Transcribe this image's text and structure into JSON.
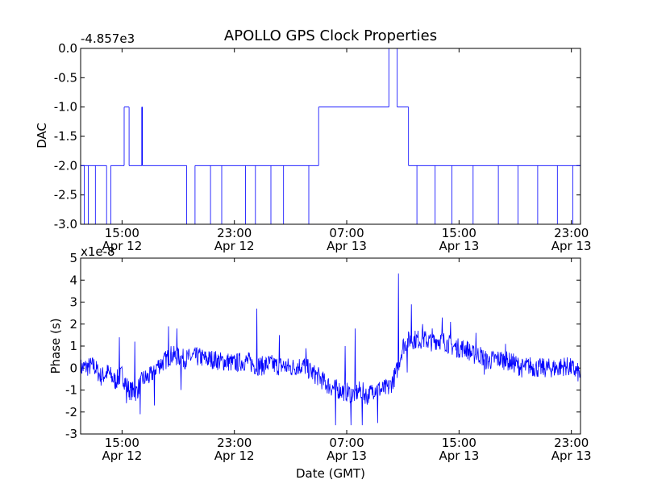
{
  "chart_data": [
    {
      "type": "line",
      "title": "APOLLO GPS Clock Properties",
      "ylabel": "DAC",
      "xlabel": "",
      "offset_label": "-4.857e3",
      "ylim": [
        -3.0,
        0.0
      ],
      "y_ticks": [
        "-3.0",
        "-2.5",
        "-2.0",
        "-1.5",
        "-1.0",
        "-0.5",
        "0.0"
      ],
      "x_ticks": [
        {
          "time": "15:00",
          "date": "Apr 12"
        },
        {
          "time": "23:00",
          "date": "Apr 12"
        },
        {
          "time": "07:00",
          "date": "Apr 13"
        },
        {
          "time": "15:00",
          "date": "Apr 13"
        },
        {
          "time": "23:00",
          "date": "Apr 13"
        }
      ],
      "x_tick_hours": [
        15,
        23,
        31,
        39,
        47
      ],
      "xlim_hours": [
        12.05,
        47.65
      ],
      "series": [
        {
          "color": "#0000ff",
          "segments": [
            {
              "x": [
                12.05,
                13.9
              ],
              "y": -2.0
            },
            {
              "x": [
                14.2,
                15.15
              ],
              "y": -2.0
            },
            {
              "x": [
                15.15,
                15.5
              ],
              "y": -1.0
            },
            {
              "x": [
                15.5,
                16.4
              ],
              "y": -2.0
            },
            {
              "x": [
                16.4,
                16.45
              ],
              "y": -1.0
            },
            {
              "x": [
                16.45,
                19.6
              ],
              "y": -2.0
            },
            {
              "x": [
                20.2,
                26.5
              ],
              "y": -2.0
            },
            {
              "x": [
                26.5,
                29.0
              ],
              "y": -2.0
            },
            {
              "x": [
                29.0,
                30.0
              ],
              "y": -1.0
            },
            {
              "x": [
                30.0,
                31.5
              ],
              "y": -1.0
            },
            {
              "x": [
                31.5,
                32.5
              ],
              "y": -1.0
            },
            {
              "x": [
                32.5,
                34.0
              ],
              "y": -1.0
            },
            {
              "x": [
                34.0,
                34.6
              ],
              "y": 0.0
            },
            {
              "x": [
                34.6,
                35.4
              ],
              "y": -1.0
            },
            {
              "x": [
                35.4,
                47.65
              ],
              "y": -2.0
            }
          ],
          "dropouts_to_min": [
            12.3,
            12.6,
            13.1,
            13.9,
            14.2,
            19.6,
            20.2,
            21.3,
            22.1,
            23.8,
            24.5,
            25.6,
            26.5,
            28.3,
            36.0,
            37.3,
            38.5,
            40.0,
            41.8,
            43.2,
            44.6,
            46.0,
            47.1
          ]
        }
      ]
    },
    {
      "type": "line",
      "title": "",
      "ylabel": "Phase (s)",
      "xlabel": "Date (GMT)",
      "offset_label": "x1e-8",
      "ylim": [
        -3,
        5
      ],
      "y_ticks": [
        "-3",
        "-2",
        "-1",
        "0",
        "1",
        "2",
        "3",
        "4",
        "5"
      ],
      "x_ticks": [
        {
          "time": "15:00",
          "date": "Apr 12"
        },
        {
          "time": "23:00",
          "date": "Apr 12"
        },
        {
          "time": "07:00",
          "date": "Apr 13"
        },
        {
          "time": "15:00",
          "date": "Apr 13"
        },
        {
          "time": "23:00",
          "date": "Apr 13"
        }
      ],
      "x_tick_hours": [
        15,
        23,
        31,
        39,
        47
      ],
      "xlim_hours": [
        12.05,
        47.65
      ],
      "series": [
        {
          "color": "#0000ff",
          "points": [
            [
              12.05,
              0.0
            ],
            [
              13.0,
              0.1
            ],
            [
              13.5,
              -0.4
            ],
            [
              14.0,
              -0.2
            ],
            [
              14.5,
              -0.6
            ],
            [
              15.0,
              -0.3
            ],
            [
              15.5,
              -1.0
            ],
            [
              16.0,
              -1.1
            ],
            [
              16.5,
              -0.5
            ],
            [
              17.0,
              -0.4
            ],
            [
              17.5,
              0.1
            ],
            [
              18.0,
              0.3
            ],
            [
              18.5,
              0.6
            ],
            [
              19.0,
              0.5
            ],
            [
              19.5,
              0.4
            ],
            [
              20.0,
              0.5
            ],
            [
              20.5,
              0.5
            ],
            [
              21.0,
              0.4
            ],
            [
              21.5,
              0.4
            ],
            [
              22.0,
              0.3
            ],
            [
              22.5,
              0.3
            ],
            [
              23.0,
              0.2
            ],
            [
              23.5,
              0.3
            ],
            [
              24.0,
              0.3
            ],
            [
              24.5,
              0.1
            ],
            [
              25.0,
              0.1
            ],
            [
              25.5,
              0.2
            ],
            [
              26.0,
              0.1
            ],
            [
              26.5,
              0.1
            ],
            [
              27.0,
              0.0
            ],
            [
              27.5,
              0.1
            ],
            [
              28.0,
              0.1
            ],
            [
              28.5,
              -0.2
            ],
            [
              29.0,
              -0.4
            ],
            [
              29.5,
              -0.7
            ],
            [
              30.0,
              -0.9
            ],
            [
              30.5,
              -1.0
            ],
            [
              31.0,
              -1.1
            ],
            [
              31.5,
              -1.2
            ],
            [
              32.0,
              -1.0
            ],
            [
              32.5,
              -1.3
            ],
            [
              33.0,
              -0.9
            ],
            [
              33.5,
              -1.0
            ],
            [
              34.0,
              -0.9
            ],
            [
              34.5,
              -0.3
            ],
            [
              35.0,
              1.0
            ],
            [
              35.5,
              1.3
            ],
            [
              36.0,
              1.3
            ],
            [
              36.5,
              1.3
            ],
            [
              37.0,
              1.2
            ],
            [
              37.5,
              1.3
            ],
            [
              38.0,
              1.2
            ],
            [
              38.5,
              1.0
            ],
            [
              39.0,
              0.9
            ],
            [
              39.5,
              0.9
            ],
            [
              40.0,
              0.6
            ],
            [
              40.5,
              0.6
            ],
            [
              41.0,
              0.3
            ],
            [
              41.5,
              0.4
            ],
            [
              42.0,
              0.4
            ],
            [
              42.5,
              0.3
            ],
            [
              43.0,
              0.2
            ],
            [
              43.5,
              0.0
            ],
            [
              44.0,
              0.1
            ],
            [
              44.5,
              0.0
            ],
            [
              45.0,
              0.0
            ],
            [
              45.5,
              0.0
            ],
            [
              46.0,
              0.0
            ],
            [
              46.5,
              0.1
            ],
            [
              47.0,
              0.0
            ],
            [
              47.65,
              -0.3
            ]
          ],
          "spikes": [
            [
              14.8,
              1.4
            ],
            [
              15.3,
              -1.6
            ],
            [
              15.9,
              1.2
            ],
            [
              16.3,
              -2.1
            ],
            [
              17.3,
              -1.7
            ],
            [
              18.3,
              1.9
            ],
            [
              18.9,
              1.8
            ],
            [
              19.2,
              -1.0
            ],
            [
              24.6,
              2.7
            ],
            [
              26.2,
              1.5
            ],
            [
              28.1,
              0.9
            ],
            [
              30.2,
              -2.6
            ],
            [
              30.9,
              1.0
            ],
            [
              31.3,
              -2.6
            ],
            [
              31.6,
              1.8
            ],
            [
              32.1,
              -2.6
            ],
            [
              32.6,
              -1.4
            ],
            [
              33.2,
              -2.5
            ],
            [
              34.7,
              4.3
            ],
            [
              35.3,
              -0.2
            ],
            [
              35.6,
              2.9
            ],
            [
              36.4,
              2.0
            ],
            [
              37.1,
              1.8
            ],
            [
              37.8,
              2.3
            ],
            [
              38.4,
              2.1
            ],
            [
              40.2,
              1.6
            ],
            [
              40.8,
              -0.3
            ],
            [
              42.3,
              1.1
            ]
          ]
        }
      ]
    }
  ]
}
